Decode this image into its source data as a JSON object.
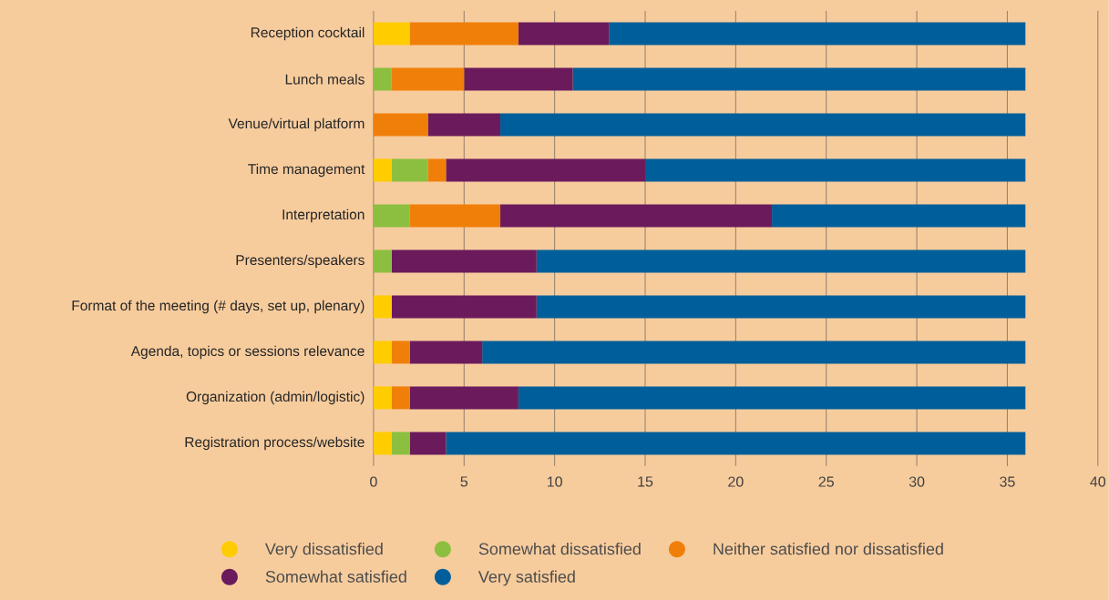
{
  "chart_data": {
    "type": "bar",
    "orientation": "horizontal",
    "stacked": true,
    "grid": "x",
    "legend": "bottom",
    "categories": [
      "Reception cocktail",
      "Lunch meals",
      "Venue/virtual platform",
      "Time management",
      "Interpretation",
      "Presenters/speakers",
      "Format of the meeting (# days, set up, plenary)",
      "Agenda, topics or sessions relevance",
      "Organization (admin/logistic)",
      "Registration process/website"
    ],
    "xlim": [
      0,
      40
    ],
    "xticks": [
      0,
      5,
      10,
      15,
      20,
      25,
      30,
      35,
      40
    ],
    "series": [
      {
        "name": "Very dissatisfied",
        "color": "#ffcc00",
        "values": [
          2,
          0,
          0,
          1,
          0,
          0,
          1,
          1,
          1,
          1
        ]
      },
      {
        "name": "Somewhat dissatisfied",
        "color": "#8cbf3f",
        "values": [
          0,
          1,
          0,
          2,
          2,
          1,
          0,
          0,
          0,
          1
        ]
      },
      {
        "name": "Neither satisfied nor dissatisfied",
        "color": "#f07f09",
        "values": [
          6,
          4,
          3,
          1,
          5,
          0,
          0,
          1,
          1,
          0
        ]
      },
      {
        "name": "Somewhat satisfied",
        "color": "#6b1b5c",
        "values": [
          5,
          6,
          4,
          11,
          15,
          8,
          8,
          4,
          6,
          2
        ]
      },
      {
        "name": "Very satisfied",
        "color": "#005f9a",
        "values": [
          23,
          25,
          29,
          21,
          14,
          27,
          27,
          30,
          28,
          32
        ]
      }
    ]
  }
}
